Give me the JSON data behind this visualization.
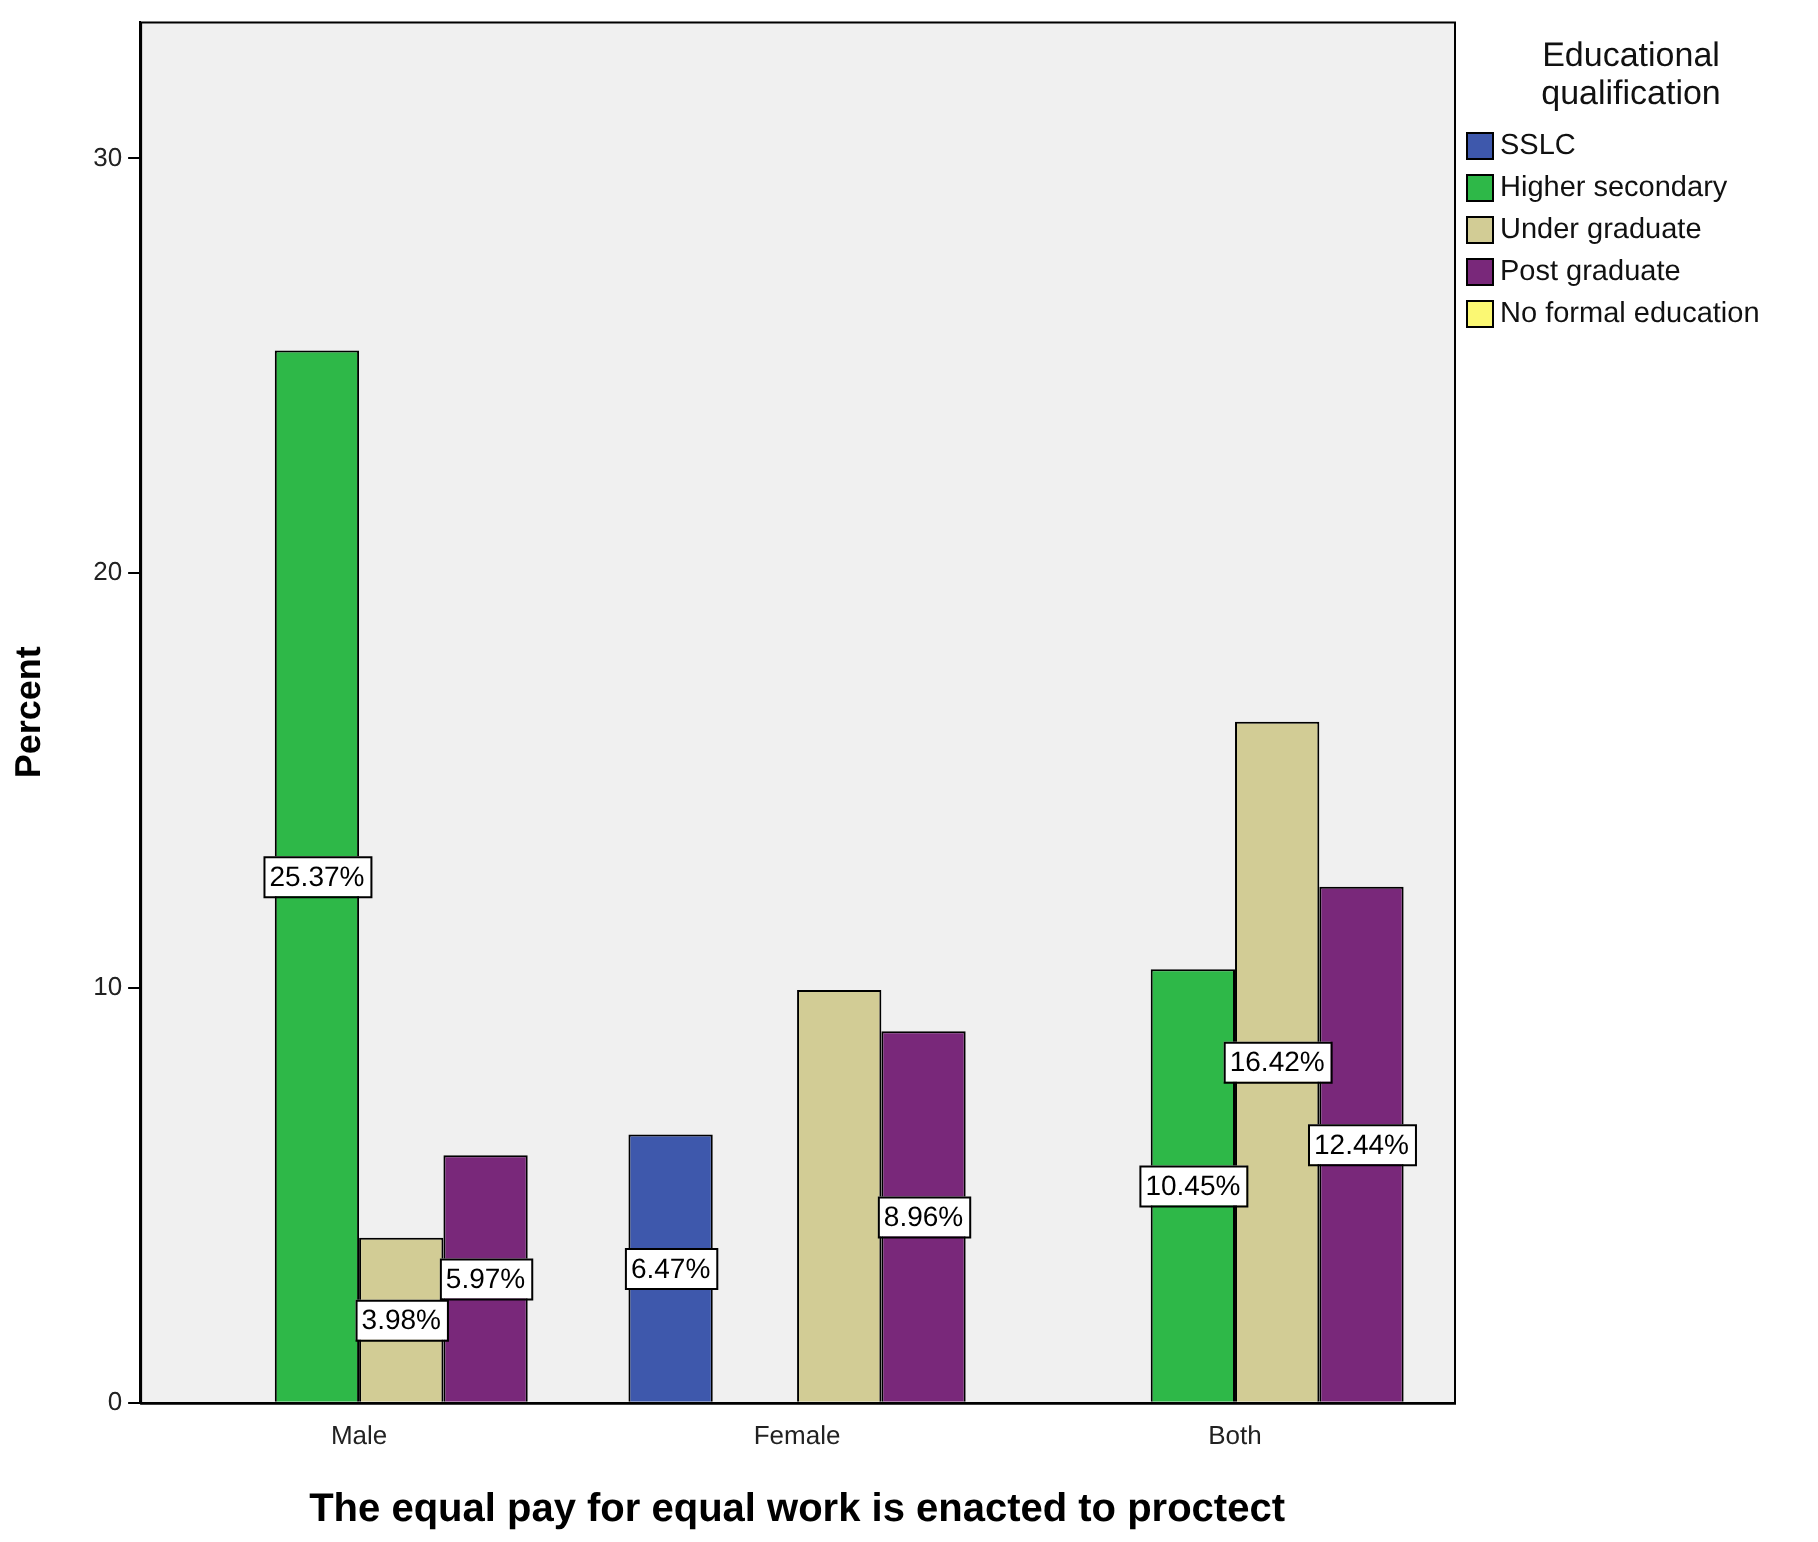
{
  "chart_data": {
    "type": "bar",
    "xlabel": "The equal pay for equal work is enacted to proctect",
    "ylabel": "Percent",
    "legend_title": "Educational qualification",
    "legend": "right",
    "grid": false,
    "categories": [
      "Male",
      "Female",
      "Both"
    ],
    "ylim": [
      0,
      33.3
    ],
    "yticks": [
      0,
      10,
      20,
      30
    ],
    "series": [
      {
        "name": "SSLC",
        "color": "#3e58ac",
        "values": [
          null,
          6.47,
          null
        ],
        "value_labels": [
          null,
          "6.47%",
          null
        ]
      },
      {
        "name": "Higher secondary",
        "color": "#2eb848",
        "values": [
          25.37,
          null,
          10.45
        ],
        "value_labels": [
          "25.37%",
          null,
          "10.45%"
        ]
      },
      {
        "name": "Under graduate",
        "color": "#d2cc95",
        "values": [
          3.98,
          9.95,
          16.42
        ],
        "value_labels": [
          "3.98%",
          null,
          "16.42%"
        ]
      },
      {
        "name": "Post graduate",
        "color": "#79287a",
        "values": [
          5.97,
          8.96,
          12.44
        ],
        "value_labels": [
          "5.97%",
          "8.96%",
          "12.44%"
        ]
      },
      {
        "name": "No formal education",
        "color": "#fbf873",
        "values": [
          null,
          null,
          null
        ],
        "value_labels": [
          null,
          null,
          null
        ]
      }
    ]
  }
}
